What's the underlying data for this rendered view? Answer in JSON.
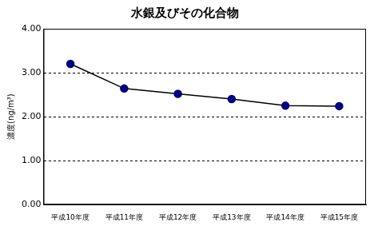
{
  "chart_data": {
    "type": "line",
    "title": "水銀及びその化合物",
    "y_label": "濃度(ng/m³)",
    "categories": [
      "平成10年度",
      "平成11年度",
      "平成12年度",
      "平成13年度",
      "平成14年度",
      "平成15年度"
    ],
    "values": [
      3.2,
      2.64,
      2.52,
      2.4,
      2.25,
      2.24
    ],
    "color": "#000080",
    "marker": "circle",
    "ylim": [
      0,
      4
    ],
    "yticks": [
      {
        "value": 0,
        "label": "0.00"
      },
      {
        "value": 1,
        "label": "1.00"
      },
      {
        "value": 2,
        "label": "2.00"
      },
      {
        "value": 3,
        "label": "3.00"
      },
      {
        "value": 4,
        "label": "4.00"
      }
    ],
    "grid": true
  }
}
